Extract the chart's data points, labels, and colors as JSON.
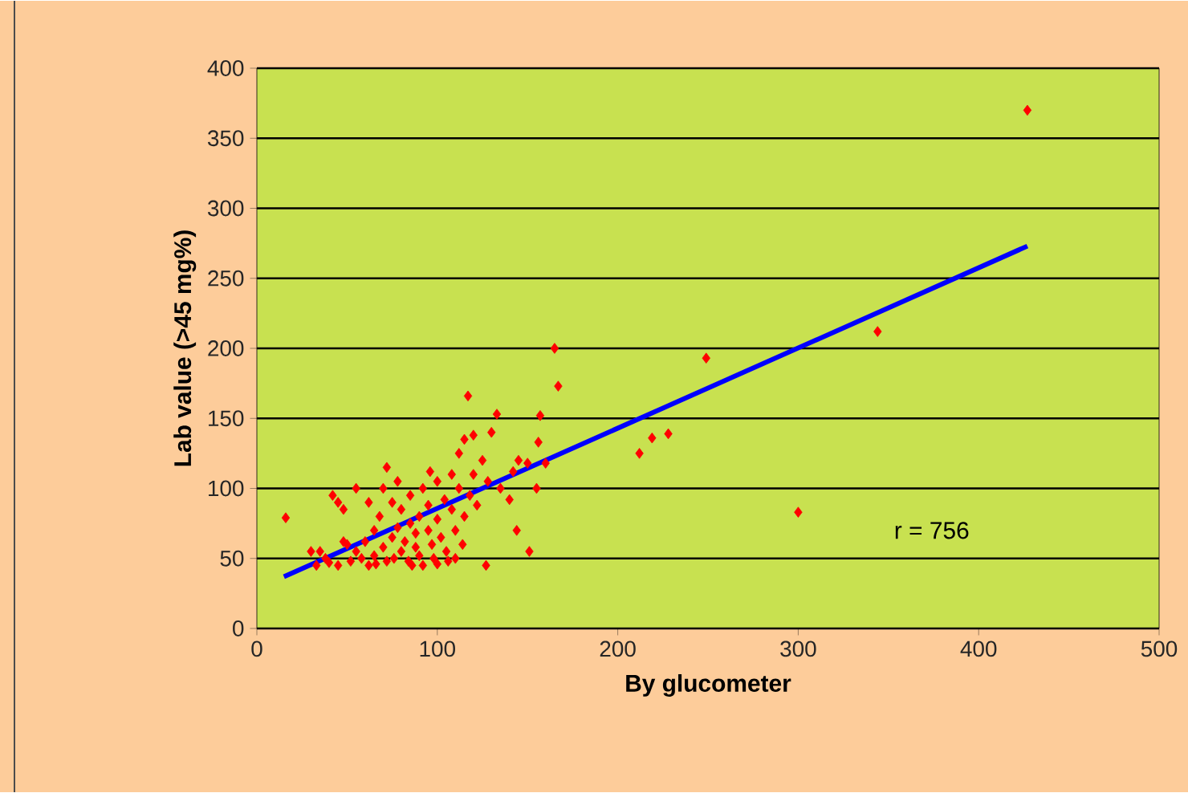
{
  "chart_data": {
    "type": "scatter",
    "xlabel": "By glucometer",
    "ylabel": "Lab value (>45 mg%)",
    "xlim": [
      0,
      500
    ],
    "ylim": [
      0,
      400
    ],
    "xticks": [
      0,
      100,
      200,
      300,
      400,
      500
    ],
    "yticks": [
      0,
      50,
      100,
      150,
      200,
      250,
      300,
      350,
      400
    ],
    "grid": "y",
    "marker": "diamond",
    "annotations": [
      "r = 756"
    ],
    "series": [
      {
        "color": "#ff0000",
        "x": [
          16,
          30,
          33,
          35,
          38,
          40,
          42,
          45,
          45,
          48,
          48,
          50,
          52,
          55,
          55,
          58,
          60,
          62,
          62,
          65,
          65,
          66,
          68,
          70,
          70,
          72,
          72,
          75,
          75,
          76,
          78,
          78,
          80,
          80,
          82,
          84,
          85,
          85,
          86,
          88,
          88,
          90,
          90,
          92,
          92,
          95,
          95,
          96,
          97,
          98,
          100,
          100,
          100,
          102,
          104,
          105,
          106,
          108,
          108,
          110,
          110,
          112,
          112,
          114,
          115,
          115,
          117,
          118,
          120,
          120,
          122,
          125,
          127,
          128,
          130,
          133,
          135,
          140,
          142,
          144,
          145,
          150,
          151,
          155,
          156,
          157,
          160,
          165,
          167,
          212,
          219,
          228,
          249,
          300,
          344,
          427
        ],
        "values": [
          79,
          55,
          45,
          55,
          50,
          47,
          95,
          90,
          45,
          85,
          62,
          60,
          48,
          55,
          100,
          50,
          62,
          45,
          90,
          70,
          52,
          46,
          80,
          58,
          100,
          115,
          48,
          65,
          90,
          50,
          72,
          105,
          55,
          85,
          62,
          48,
          95,
          75,
          45,
          58,
          68,
          52,
          80,
          100,
          45,
          70,
          88,
          112,
          60,
          50,
          105,
          78,
          46,
          65,
          92,
          55,
          48,
          85,
          110,
          70,
          50,
          100,
          125,
          60,
          135,
          80,
          166,
          95,
          110,
          138,
          88,
          120,
          45,
          105,
          140,
          153,
          100,
          92,
          112,
          70,
          120,
          118,
          55,
          100,
          133,
          152,
          118,
          200,
          173,
          125,
          136,
          139,
          193,
          83,
          212,
          370
        ]
      },
      {
        "type": "line",
        "marker": "none",
        "color": "#0000ff",
        "x": [
          15,
          427
        ],
        "values": [
          37,
          273
        ]
      }
    ]
  }
}
